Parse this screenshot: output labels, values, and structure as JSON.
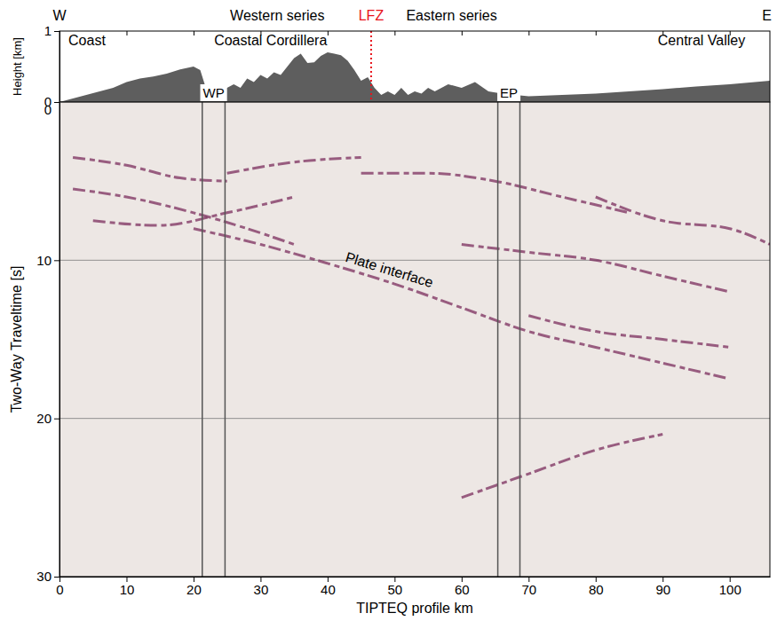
{
  "chart_data": [
    {
      "type": "area",
      "ylabel": "Height [km]",
      "x": [
        0,
        2,
        4,
        6,
        8,
        10,
        12,
        14,
        16,
        18,
        20,
        21,
        22,
        23,
        24,
        25,
        26,
        27,
        28,
        29,
        30,
        31,
        32,
        33,
        34,
        35,
        36,
        37,
        38,
        39,
        40,
        41,
        42,
        43,
        44,
        45,
        46,
        47,
        48,
        49,
        50,
        51,
        52,
        53,
        54,
        55,
        56,
        58,
        60,
        62,
        64,
        66,
        68,
        70,
        75,
        80,
        85,
        90,
        95,
        100,
        106
      ],
      "values": [
        0,
        0.05,
        0.1,
        0.15,
        0.2,
        0.28,
        0.33,
        0.36,
        0.4,
        0.46,
        0.5,
        0.45,
        0.15,
        0.1,
        0.15,
        0.2,
        0.25,
        0.2,
        0.33,
        0.28,
        0.38,
        0.33,
        0.42,
        0.38,
        0.5,
        0.62,
        0.68,
        0.55,
        0.56,
        0.65,
        0.7,
        0.68,
        0.66,
        0.58,
        0.45,
        0.3,
        0.35,
        0.2,
        0.1,
        0.15,
        0.1,
        0.2,
        0.1,
        0.15,
        0.12,
        0.2,
        0.15,
        0.25,
        0.2,
        0.28,
        0.15,
        0.12,
        0.1,
        0.08,
        0.1,
        0.12,
        0.15,
        0.18,
        0.22,
        0.25,
        0.3
      ],
      "color": "#5e5e5e",
      "xlim": [
        0,
        106
      ],
      "ylim": [
        0,
        1
      ],
      "xticks": [
        0,
        10,
        20,
        30,
        40,
        50,
        60,
        70,
        80,
        90,
        100
      ],
      "yticks": [
        0,
        1
      ],
      "tick_labels": "y",
      "header": [
        {
          "text": "W",
          "x": 0
        },
        {
          "text": "Western series",
          "x": 32.5
        },
        {
          "text": "LFZ",
          "x": 46.5,
          "color": "#e8141c"
        },
        {
          "text": "Eastern series",
          "x": 58.5
        },
        {
          "text": "E",
          "x": 106
        }
      ],
      "annotations": [
        {
          "text": "Coast",
          "x": 4.1,
          "y": 0.8
        },
        {
          "text": "Coastal Cordillera",
          "x": 31.5,
          "y": 0.8
        },
        {
          "text": "Central Valley",
          "x": 95.8,
          "y": 0.8
        }
      ],
      "lfz_x": 46.5
    },
    {
      "type": "seismic_section",
      "xlabel": "TIPTEQ profile km",
      "ylabel": "Two-Way Traveltime [s]",
      "xlim": [
        0,
        106
      ],
      "ylim": [
        0,
        30
      ],
      "xticks": [
        0,
        10,
        20,
        30,
        40,
        50,
        60,
        70,
        80,
        90,
        100
      ],
      "yticks": [
        0,
        10,
        20,
        30
      ],
      "grid": true,
      "color": "#7b2d5e",
      "reflectors": [
        {
          "x": [
            2,
            10,
            18,
            25
          ],
          "values": [
            3.5,
            4,
            4.8,
            5
          ]
        },
        {
          "x": [
            2,
            10,
            20,
            28,
            35
          ],
          "values": [
            5.5,
            6,
            7,
            8,
            9
          ]
        },
        {
          "x": [
            5,
            15,
            25,
            35
          ],
          "values": [
            7.5,
            7.8,
            7,
            6
          ]
        },
        {
          "x": [
            25,
            35,
            45
          ],
          "values": [
            4.5,
            3.8,
            3.5
          ]
        },
        {
          "x": [
            45,
            55,
            65,
            75,
            85
          ],
          "values": [
            4.5,
            4.5,
            5,
            6,
            7
          ]
        },
        {
          "x": [
            20,
            30,
            40,
            50,
            60,
            70,
            80,
            90,
            100
          ],
          "values": [
            8,
            9,
            10.2,
            11.5,
            13,
            14.5,
            15.5,
            16.5,
            17.5
          ]
        },
        {
          "x": [
            60,
            70,
            80,
            90,
            100
          ],
          "values": [
            9,
            9.5,
            10,
            11,
            12
          ]
        },
        {
          "x": [
            70,
            80,
            90,
            100
          ],
          "values": [
            13.5,
            14.5,
            15,
            15.5
          ]
        },
        {
          "x": [
            60,
            70,
            80,
            90
          ],
          "values": [
            25,
            23.5,
            22,
            21
          ]
        },
        {
          "x": [
            80,
            90,
            100,
            106
          ],
          "values": [
            6,
            7.5,
            8,
            9
          ]
        }
      ],
      "markers": [
        {
          "label": "WP",
          "x": [
            21.3,
            24.7
          ]
        },
        {
          "label": "EP",
          "x": [
            65.4,
            68.7
          ]
        }
      ],
      "annotations": [
        {
          "text": "Plate interface",
          "x": 49,
          "y": 10.9
        }
      ]
    }
  ]
}
